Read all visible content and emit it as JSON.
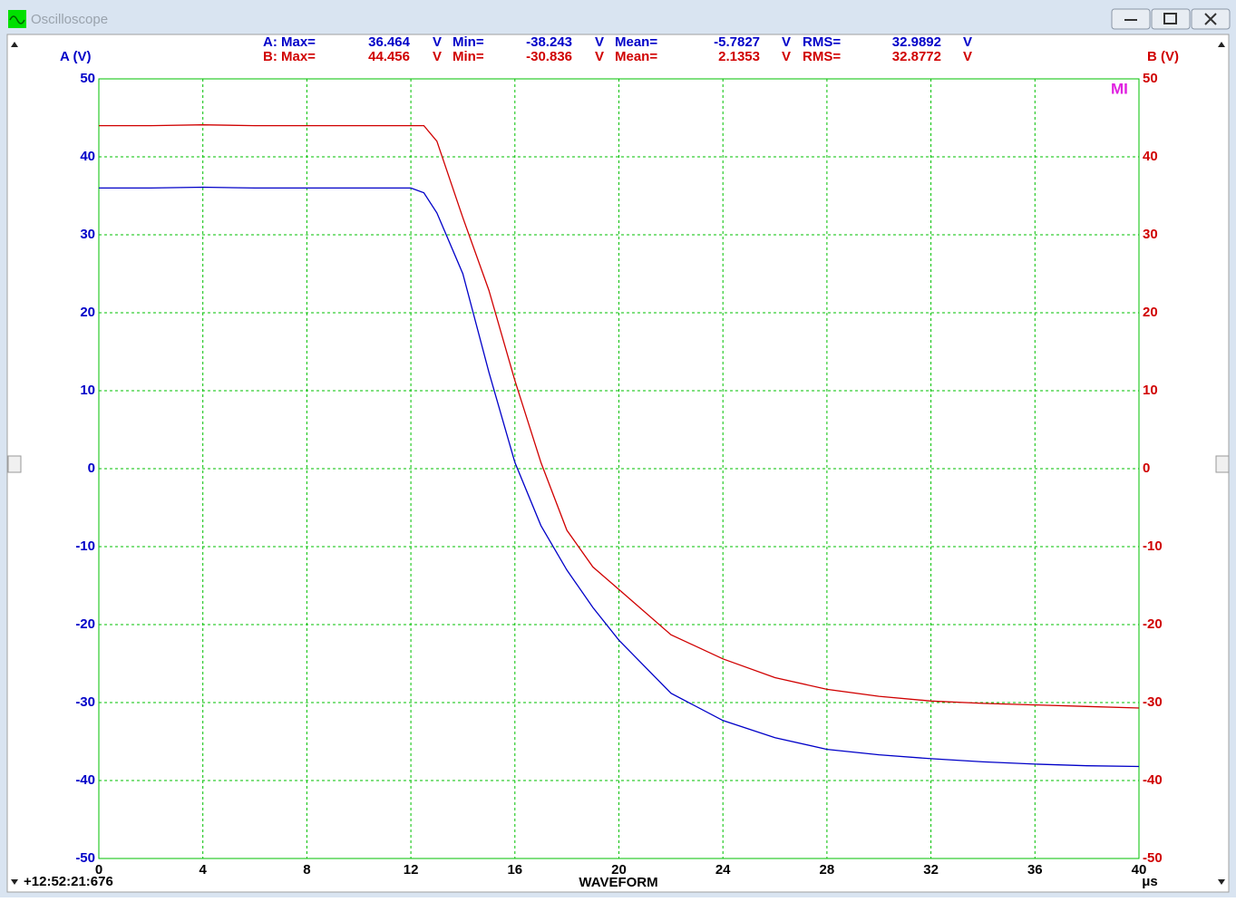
{
  "window": {
    "title": "Oscilloscope"
  },
  "stats": [
    [
      "A: Max=",
      "36.464",
      "V",
      "Min=",
      "-38.243",
      "V",
      "Mean=",
      "-5.7827",
      "V",
      "RMS=",
      "32.9892",
      "V"
    ],
    [
      "B: Max=",
      "44.456",
      "V",
      "Min=",
      "-30.836",
      "V",
      "Mean=",
      "2.1353",
      "V",
      "RMS=",
      "32.8772",
      "V"
    ]
  ],
  "marker": "MI",
  "timestamp": "+12:52:21:676",
  "chart_data": {
    "type": "line",
    "xlabel": "WAVEFORM",
    "xunit": "μs",
    "ylabel": "A (V)",
    "y2label": "B (V)",
    "x": [
      0,
      2,
      4,
      6,
      8,
      10,
      12,
      12.5,
      13,
      14,
      15,
      16,
      17,
      18,
      19,
      20,
      22,
      24,
      26,
      28,
      30,
      32,
      34,
      36,
      38,
      40
    ],
    "series": [
      {
        "name": "A",
        "color": "#0000c8",
        "values": [
          36,
          36,
          36.1,
          36,
          36,
          36,
          36,
          35.4,
          32.8,
          25,
          12.4,
          0.8,
          -7.3,
          -13,
          -17.8,
          -22,
          -28.8,
          -32.3,
          -34.5,
          -36,
          -36.7,
          -37.2,
          -37.6,
          -37.9,
          -38.1,
          -38.2
        ]
      },
      {
        "name": "B",
        "color": "#d00000",
        "values": [
          44,
          44,
          44.1,
          44,
          44,
          44,
          44,
          44,
          42,
          32.2,
          22.9,
          11.3,
          0.8,
          -7.9,
          -12.6,
          -15.5,
          -21.3,
          -24.4,
          -26.8,
          -28.3,
          -29.2,
          -29.8,
          -30.1,
          -30.3,
          -30.5,
          -30.7
        ],
        "axis": "y2"
      }
    ],
    "xlim": [
      0,
      40
    ],
    "xticks": [
      0,
      4,
      8,
      12,
      16,
      20,
      24,
      28,
      32,
      36,
      40
    ],
    "ylim": [
      -50,
      50
    ],
    "yticks": [
      -50,
      -40,
      -30,
      -20,
      -10,
      0,
      10,
      20,
      30,
      40,
      50
    ],
    "y2lim": [
      -50,
      50
    ],
    "y2ticks": [
      -50,
      -40,
      -30,
      -20,
      -10,
      0,
      10,
      20,
      30,
      40,
      50
    ],
    "grid": true
  }
}
